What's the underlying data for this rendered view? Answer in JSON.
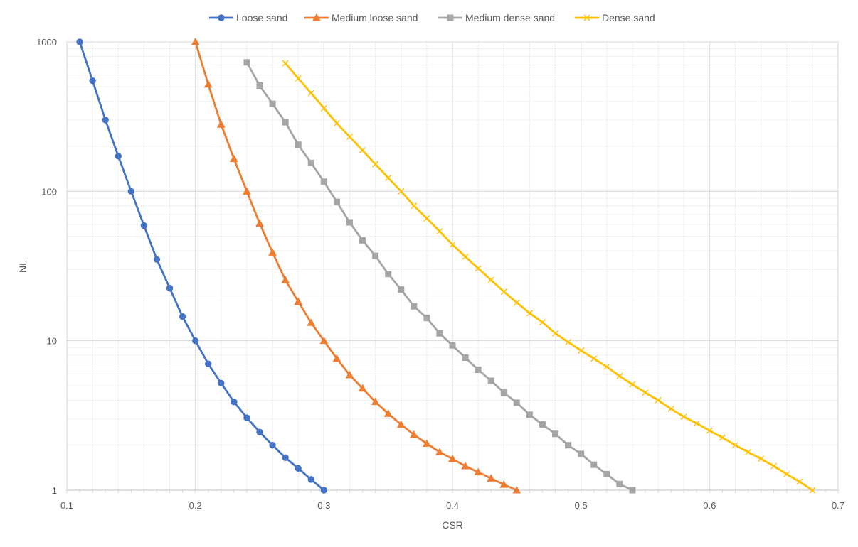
{
  "chart_data": {
    "type": "line",
    "title": "",
    "xlabel": "CSR",
    "ylabel": "NL",
    "xlim": [
      0.1,
      0.7
    ],
    "ylim": [
      1,
      1000
    ],
    "y_scale": "log",
    "x_ticks": [
      "0.1",
      "0.2",
      "0.3",
      "0.4",
      "0.5",
      "0.6",
      "0.7"
    ],
    "y_ticks": [
      "1",
      "10",
      "100",
      "1000"
    ],
    "grid": true,
    "legend_position": "top",
    "series": [
      {
        "name": "Loose sand",
        "color": "#4472C4",
        "marker": "circle",
        "x": [
          0.11,
          0.12,
          0.13,
          0.14,
          0.15,
          0.16,
          0.17,
          0.18,
          0.19,
          0.2,
          0.21,
          0.22,
          0.23,
          0.24,
          0.25,
          0.26,
          0.27,
          0.28,
          0.29,
          0.3
        ],
        "y": [
          1000,
          550,
          300,
          172,
          100,
          59,
          35,
          22.5,
          14.5,
          10,
          7,
          5.2,
          3.9,
          3.05,
          2.45,
          2.0,
          1.65,
          1.4,
          1.18,
          1.0
        ]
      },
      {
        "name": "Medium loose sand",
        "color": "#ED7D31",
        "marker": "triangle",
        "x": [
          0.2,
          0.21,
          0.22,
          0.23,
          0.24,
          0.25,
          0.26,
          0.27,
          0.28,
          0.29,
          0.3,
          0.31,
          0.32,
          0.33,
          0.34,
          0.35,
          0.36,
          0.37,
          0.38,
          0.39,
          0.4,
          0.41,
          0.42,
          0.43,
          0.44,
          0.45
        ],
        "y": [
          1000,
          520,
          280,
          165,
          100,
          61,
          39,
          25.5,
          18.3,
          13.2,
          10,
          7.6,
          5.9,
          4.8,
          3.9,
          3.25,
          2.75,
          2.35,
          2.05,
          1.8,
          1.62,
          1.45,
          1.32,
          1.2,
          1.09,
          1.0
        ]
      },
      {
        "name": "Medium dense sand",
        "color": "#A5A5A5",
        "marker": "square",
        "x": [
          0.24,
          0.25,
          0.26,
          0.27,
          0.28,
          0.29,
          0.3,
          0.31,
          0.32,
          0.33,
          0.34,
          0.35,
          0.36,
          0.37,
          0.38,
          0.39,
          0.4,
          0.41,
          0.42,
          0.43,
          0.44,
          0.45,
          0.46,
          0.47,
          0.48,
          0.49,
          0.5,
          0.51,
          0.52,
          0.53,
          0.54
        ],
        "y": [
          730,
          510,
          385,
          290,
          205,
          155,
          116,
          85,
          62,
          47,
          37,
          28,
          22,
          17,
          14.2,
          11.2,
          9.3,
          7.7,
          6.4,
          5.4,
          4.5,
          3.85,
          3.2,
          2.75,
          2.38,
          2.0,
          1.75,
          1.48,
          1.28,
          1.1,
          1.0
        ]
      },
      {
        "name": "Dense sand",
        "color": "#FFC000",
        "marker": "x",
        "x": [
          0.27,
          0.28,
          0.29,
          0.3,
          0.31,
          0.32,
          0.33,
          0.34,
          0.35,
          0.36,
          0.37,
          0.38,
          0.39,
          0.4,
          0.41,
          0.42,
          0.43,
          0.44,
          0.45,
          0.46,
          0.47,
          0.48,
          0.49,
          0.5,
          0.51,
          0.52,
          0.53,
          0.54,
          0.55,
          0.56,
          0.57,
          0.58,
          0.59,
          0.6,
          0.61,
          0.62,
          0.63,
          0.64,
          0.65,
          0.66,
          0.67,
          0.68
        ],
        "y": [
          720,
          570,
          455,
          360,
          285,
          232,
          188,
          152,
          123,
          100,
          80,
          66,
          54,
          44,
          36.5,
          30.5,
          25.5,
          21.3,
          18,
          15.3,
          13.3,
          11.2,
          9.8,
          8.6,
          7.6,
          6.7,
          5.8,
          5.1,
          4.5,
          4.0,
          3.5,
          3.1,
          2.8,
          2.5,
          2.25,
          2.0,
          1.8,
          1.62,
          1.45,
          1.28,
          1.14,
          1.0
        ]
      }
    ]
  }
}
